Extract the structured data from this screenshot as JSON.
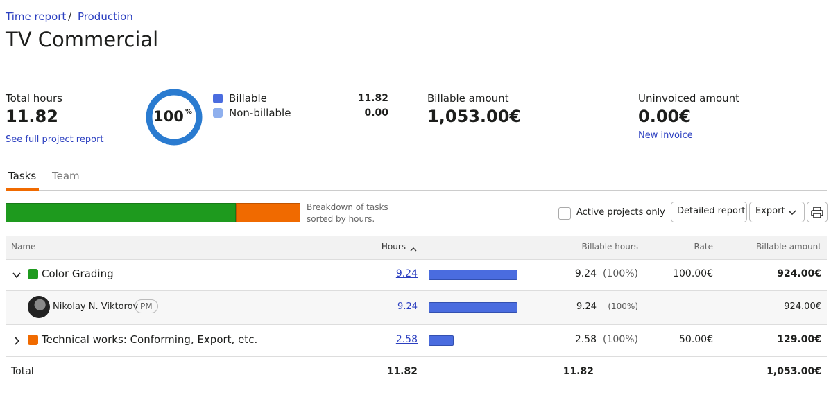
{
  "breadcrumb": [
    "Time report",
    "Production"
  ],
  "breadcrumb_separator": "/",
  "title": "TV Commercial",
  "summary": {
    "total_hours_label": "Total hours",
    "total_hours": 11.82,
    "report_link": "See full project report",
    "donut_value": "100",
    "donut_unit": "%",
    "legend": [
      {
        "name": "Billable",
        "value": "11.82",
        "color": "#4a6cdf"
      },
      {
        "name": "Non-billable",
        "value": "0.00",
        "color": "#8fb0ee"
      }
    ],
    "billable_amount_label": "Billable amount",
    "billable_amount": "1,053.00€",
    "uninvoiced_label": "Uninvoiced amount",
    "uninvoiced_amount": "0.00€",
    "new_invoice": "New invoice"
  },
  "tabs": [
    "Tasks",
    "Team"
  ],
  "breakdown_caption": "Breakdown of tasks sorted by hours.",
  "active_only": "Active projects only",
  "buttons": {
    "detailed": "Detailed report",
    "export": "Export"
  },
  "table": {
    "columns": [
      "Name",
      "Hours",
      "Billable hours",
      "Rate",
      "Billable amount"
    ],
    "rows": [
      {
        "name": "Color Grading",
        "color": "#1e9a1e",
        "expanded": true,
        "hours": 9.24,
        "billable_hours": "9.24",
        "billable_pct": "(100%)",
        "rate": "100.00€",
        "amount": "924.00€",
        "members": [
          {
            "name": "Nikolay N. Viktorov",
            "badge": "PM",
            "hours": 9.24,
            "billable_hours": "9.24",
            "billable_pct": "(100%)",
            "amount": "924.00€"
          }
        ]
      },
      {
        "name": "Technical works: Conforming, Export, etc.",
        "color": "#f06a00",
        "expanded": false,
        "hours": 2.58,
        "billable_hours": "2.58",
        "billable_pct": "(100%)",
        "rate": "50.00€",
        "amount": "129.00€",
        "members": []
      }
    ],
    "total": {
      "label": "Total",
      "hours": 11.82,
      "billable_hours": "11.82",
      "amount": "1,053.00€"
    }
  }
}
